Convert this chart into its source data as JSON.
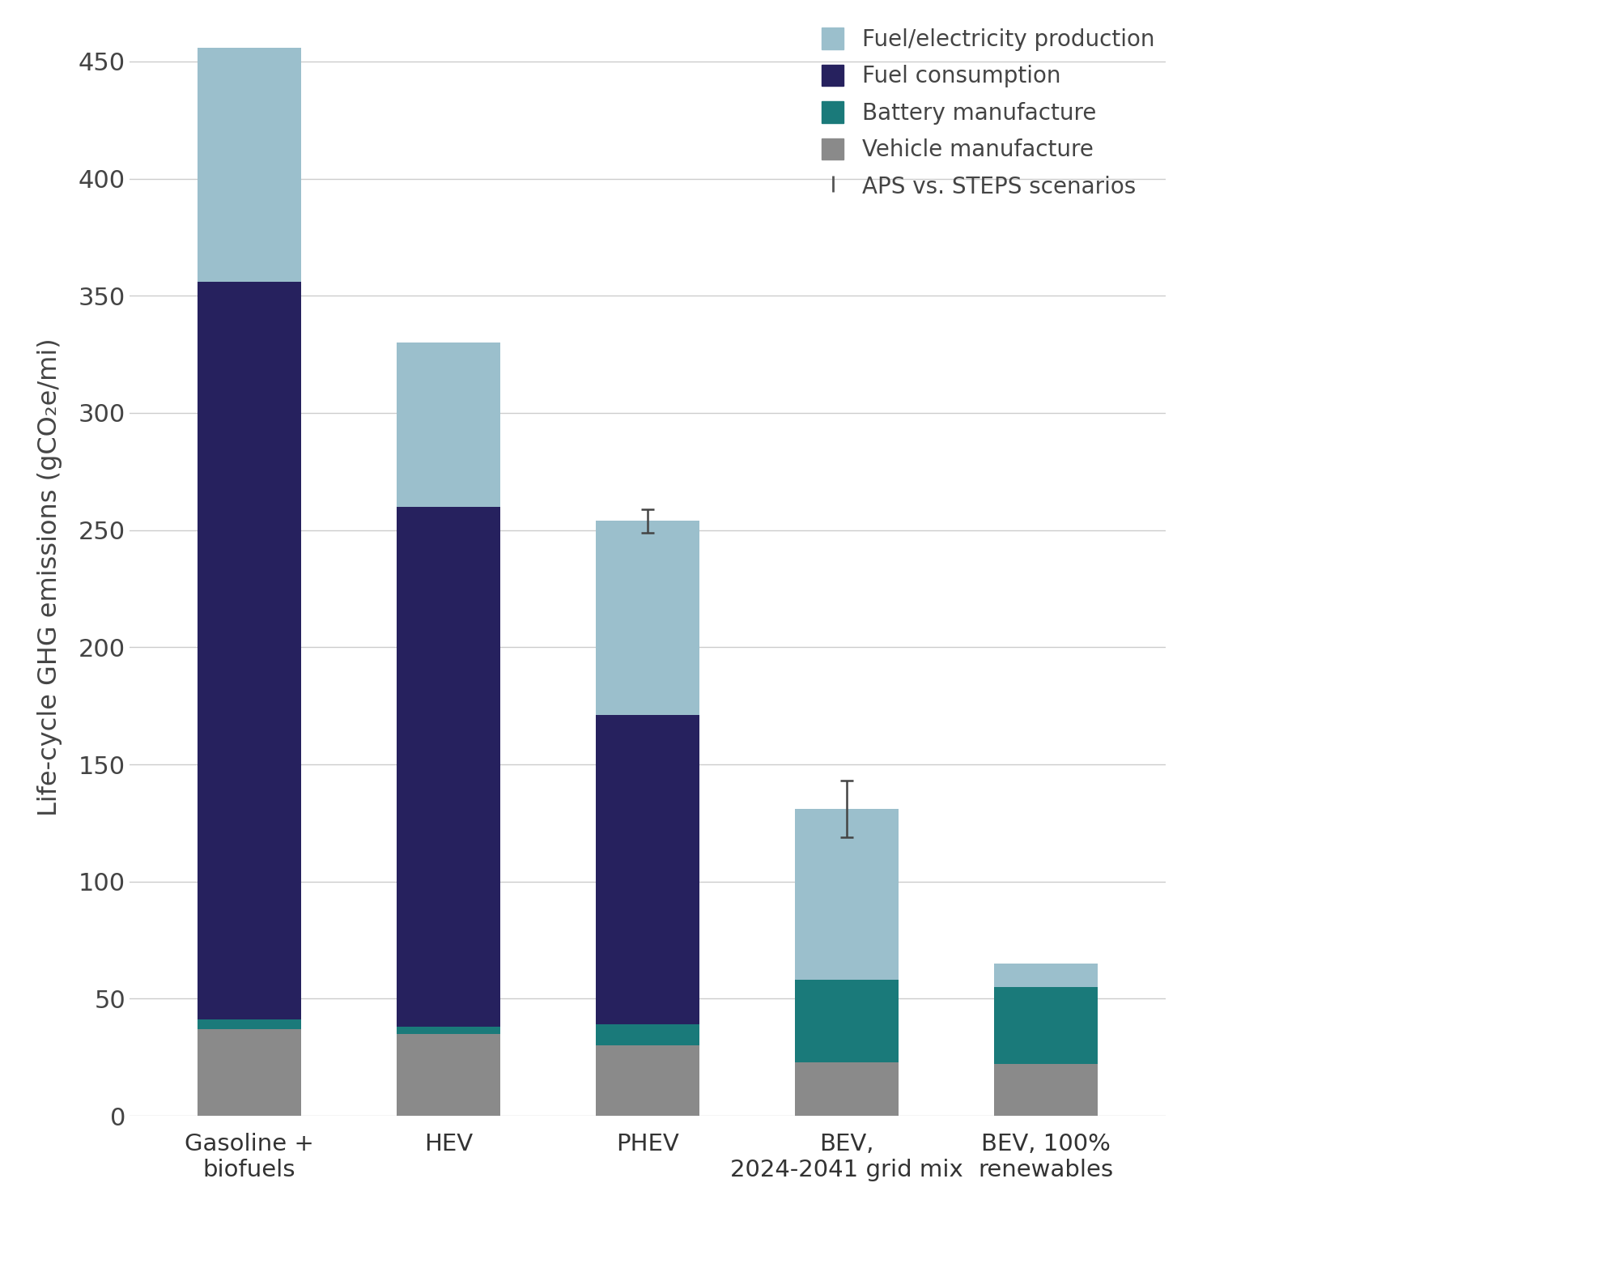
{
  "categories": [
    "Gasoline +\nbiofuels",
    "HEV",
    "PHEV",
    "BEV,\n2024-2041 grid mix",
    "BEV, 100%\nrenewables"
  ],
  "vehicle_manufacture": [
    37,
    35,
    30,
    23,
    22
  ],
  "battery_manufacture": [
    4,
    3,
    9,
    35,
    33
  ],
  "fuel_consumption": [
    315,
    222,
    132,
    0,
    0
  ],
  "fuel_electricity_production": [
    100,
    70,
    83,
    73,
    10
  ],
  "error_bars": [
    null,
    null,
    5,
    12,
    null
  ],
  "error_bar_positions": [
    null,
    null,
    254,
    131,
    null
  ],
  "colors": {
    "vehicle_manufacture": "#8a8a8a",
    "battery_manufacture": "#1a7a7a",
    "fuel_consumption": "#26215e",
    "fuel_electricity_production": "#9bbfcc"
  },
  "ylabel": "Life-cycle GHG emissions (gCO₂e/mi)",
  "ylim": [
    0,
    460
  ],
  "yticks": [
    0,
    50,
    100,
    150,
    200,
    250,
    300,
    350,
    400,
    450
  ],
  "background_color": "#ffffff",
  "grid_color": "#cccccc",
  "legend_labels": [
    "Fuel/electricity production",
    "Fuel consumption",
    "Battery manufacture",
    "Vehicle manufacture",
    "APS vs. STEPS scenarios"
  ],
  "legend_colors": [
    "#9bbfcc",
    "#26215e",
    "#1a7a7a",
    "#8a8a8a",
    "#555555"
  ]
}
